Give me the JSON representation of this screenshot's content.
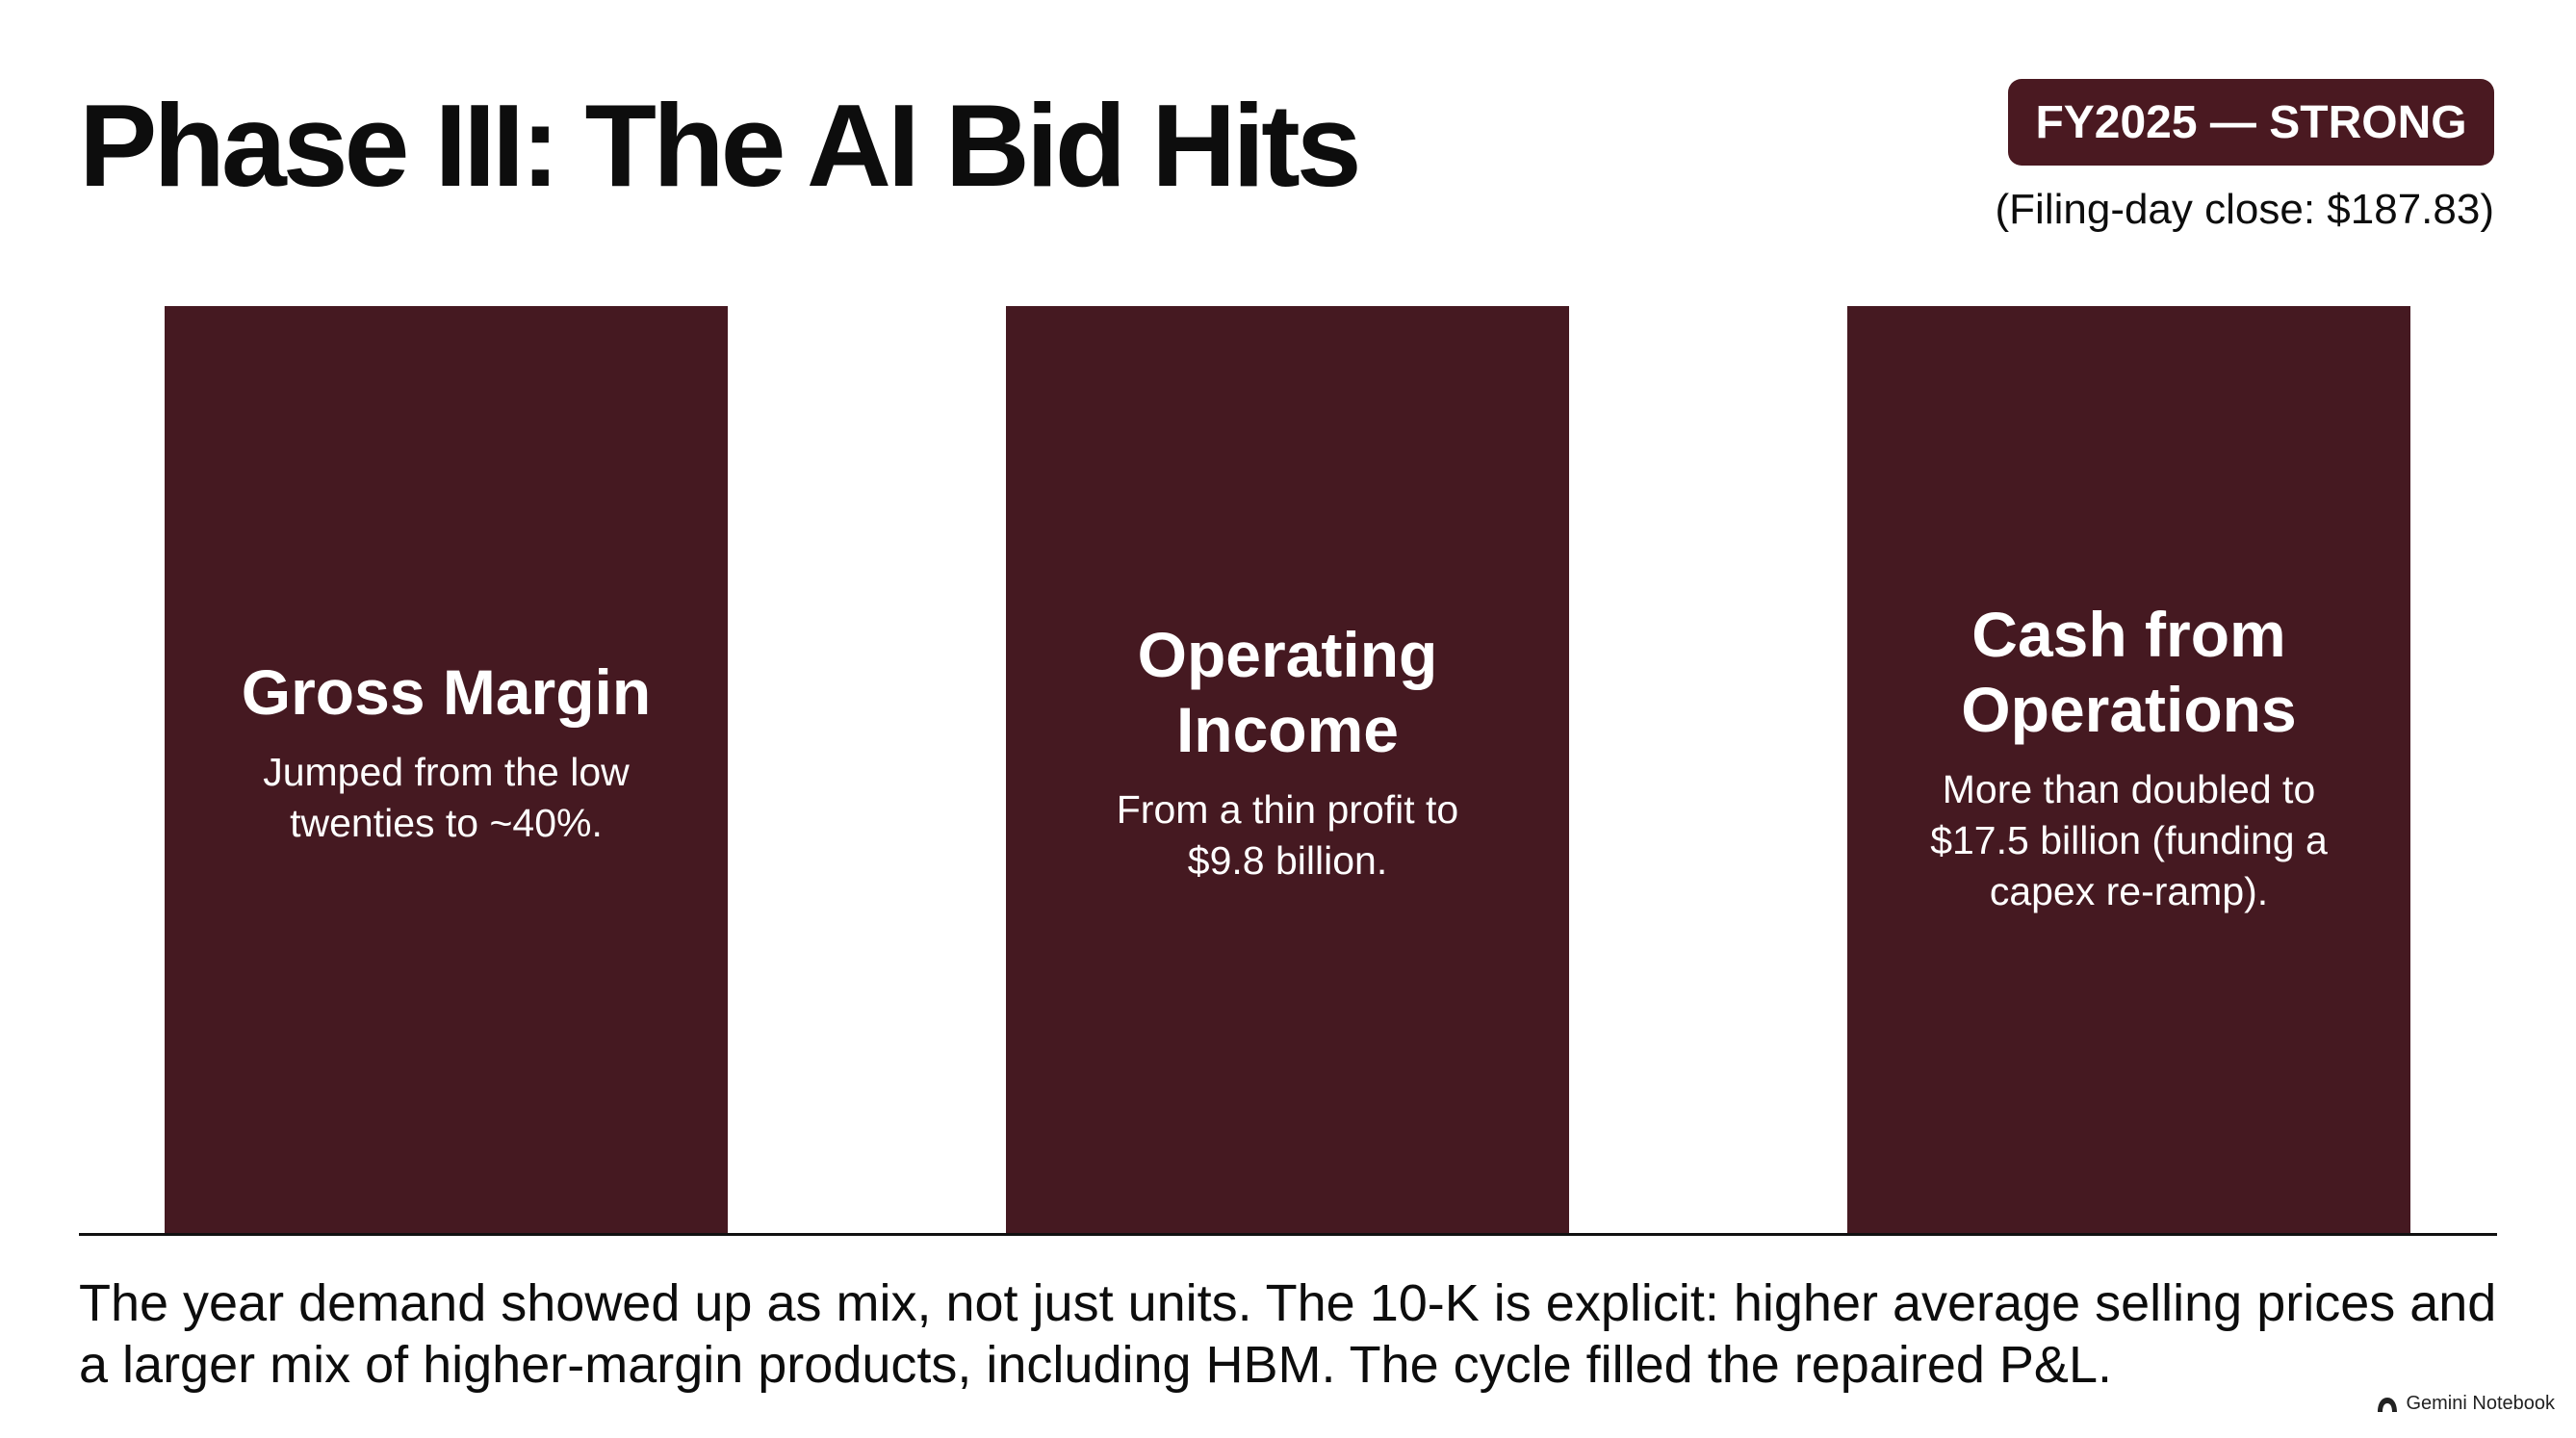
{
  "slide": {
    "title": "Phase III: The AI Bid Hits",
    "badge": "FY2025 — STRONG",
    "subnote": "(Filing-day close: $187.83)"
  },
  "cards": [
    {
      "title": "Gross Margin",
      "text": "Jumped from the low twenties to ~40%."
    },
    {
      "title": "Operating Income",
      "text": "From a thin profit to $9.8 billion."
    },
    {
      "title": "Cash from Operations",
      "text": "More than doubled to $17.5 billion (funding a capex re-ramp)."
    }
  ],
  "footer": "The year demand showed up as mix, not just units. The 10-K is explicit: higher average selling prices and a larger mix of higher-margin products, including HBM. The cycle filled the repaired P&L.",
  "watermark": {
    "icon": "notebook-icon",
    "text": "Gemini Notebook"
  },
  "colors": {
    "card": "#451921",
    "badge": "#4a1921",
    "text": "#0d0d0d"
  }
}
